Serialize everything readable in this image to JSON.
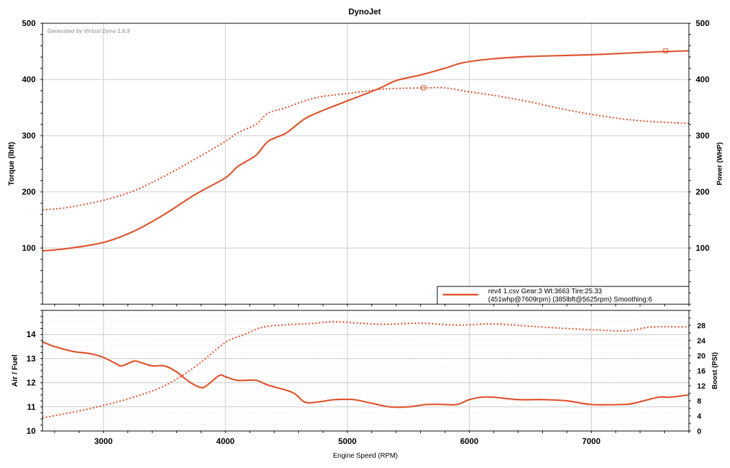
{
  "chart_data": [
    {
      "type": "line",
      "title": "DynoJet",
      "watermark": "Generated by Virtual Dyno 1.6.9",
      "ylabel": "Torque (lbft)",
      "y2label": "Power (WHP)",
      "xlim": [
        2500,
        7800
      ],
      "ylim": [
        0,
        500
      ],
      "y2lim": [
        0,
        500
      ],
      "y_ticks": [
        "100",
        "200",
        "300",
        "400",
        "500"
      ],
      "y2_ticks": [
        "100",
        "200",
        "300",
        "400",
        "500"
      ],
      "grid": true,
      "color": "#e0502a",
      "legend": {
        "placement": "bottom-right",
        "line1": "rev4 1.csv Gear:3 Wt:3663 Tire:25.33",
        "line2": "(451whp@7609rpm) (385lbft@5625rpm) Smoothing:6"
      },
      "series": [
        {
          "style": "solid",
          "axis": "right",
          "x": [
            2500,
            2700,
            3000,
            3250,
            3500,
            3750,
            4000,
            4100,
            4250,
            4350,
            4500,
            4650,
            4800,
            5000,
            5250,
            5400,
            5600,
            5800,
            5950,
            6200,
            6500,
            7000,
            7500,
            7800
          ],
          "values": [
            95,
            99,
            110,
            130,
            160,
            195,
            225,
            245,
            265,
            290,
            305,
            330,
            345,
            362,
            383,
            398,
            408,
            420,
            430,
            437,
            441,
            444,
            449,
            451
          ]
        },
        {
          "style": "dotted",
          "axis": "left",
          "x": [
            2500,
            2700,
            3000,
            3250,
            3500,
            3750,
            4000,
            4100,
            4250,
            4350,
            4500,
            4650,
            4800,
            5000,
            5250,
            5400,
            5625,
            5800,
            6000,
            6250,
            6500,
            6750,
            7000,
            7250,
            7500,
            7800
          ],
          "values": [
            168,
            172,
            185,
            202,
            228,
            258,
            290,
            305,
            320,
            340,
            350,
            362,
            370,
            375,
            382,
            384,
            385,
            385,
            378,
            370,
            360,
            348,
            338,
            330,
            325,
            322
          ]
        }
      ],
      "peak_markers": [
        {
          "x": 7609,
          "value": 451
        },
        {
          "x": 5625,
          "value": 385
        }
      ]
    },
    {
      "type": "line",
      "xlabel": "Engine Speed (RPM)",
      "ylabel": "Air / Fuel",
      "y2label": "Boost (PSI)",
      "xlim": [
        2500,
        7800
      ],
      "ylim": [
        10,
        15
      ],
      "y2lim": [
        0,
        32
      ],
      "x_ticks": [
        "3000",
        "4000",
        "5000",
        "6000",
        "7000"
      ],
      "y_ticks": [
        "10",
        "11",
        "12",
        "13",
        "14"
      ],
      "y2_ticks": [
        "0",
        "4",
        "8",
        "12",
        "16",
        "20",
        "24",
        "28"
      ],
      "grid": true,
      "color": "#e0502a",
      "series": [
        {
          "style": "solid",
          "axis": "left",
          "x": [
            2500,
            2600,
            2750,
            2900,
            3000,
            3100,
            3150,
            3250,
            3300,
            3400,
            3500,
            3600,
            3700,
            3800,
            3850,
            3950,
            4000,
            4100,
            4250,
            4350,
            4550,
            4650,
            4750,
            4900,
            5050,
            5200,
            5350,
            5500,
            5650,
            5800,
            5900,
            6000,
            6100,
            6200,
            6400,
            6600,
            6800,
            7000,
            7250,
            7350,
            7550,
            7650,
            7800
          ],
          "values": [
            13.7,
            13.5,
            13.3,
            13.2,
            13.05,
            12.8,
            12.7,
            12.9,
            12.85,
            12.7,
            12.7,
            12.45,
            12.05,
            11.8,
            11.9,
            12.3,
            12.25,
            12.1,
            12.1,
            11.9,
            11.6,
            11.2,
            11.2,
            11.3,
            11.3,
            11.15,
            11.0,
            11.0,
            11.1,
            11.1,
            11.1,
            11.3,
            11.4,
            11.4,
            11.3,
            11.3,
            11.25,
            11.1,
            11.1,
            11.15,
            11.4,
            11.4,
            11.5
          ]
        },
        {
          "style": "dotted",
          "axis": "right",
          "x": [
            2500,
            2750,
            3000,
            3250,
            3500,
            3750,
            4000,
            4150,
            4300,
            4500,
            4700,
            4900,
            5100,
            5300,
            5600,
            5900,
            6200,
            6500,
            6800,
            7100,
            7300,
            7500,
            7800
          ],
          "values": [
            3.5,
            5.0,
            6.8,
            9.0,
            12.0,
            17.0,
            23.5,
            25.5,
            27.5,
            28.2,
            28.5,
            29.0,
            28.6,
            28.3,
            28.6,
            28.1,
            28.4,
            27.8,
            27.2,
            26.7,
            26.6,
            27.6,
            27.6
          ]
        }
      ]
    }
  ]
}
